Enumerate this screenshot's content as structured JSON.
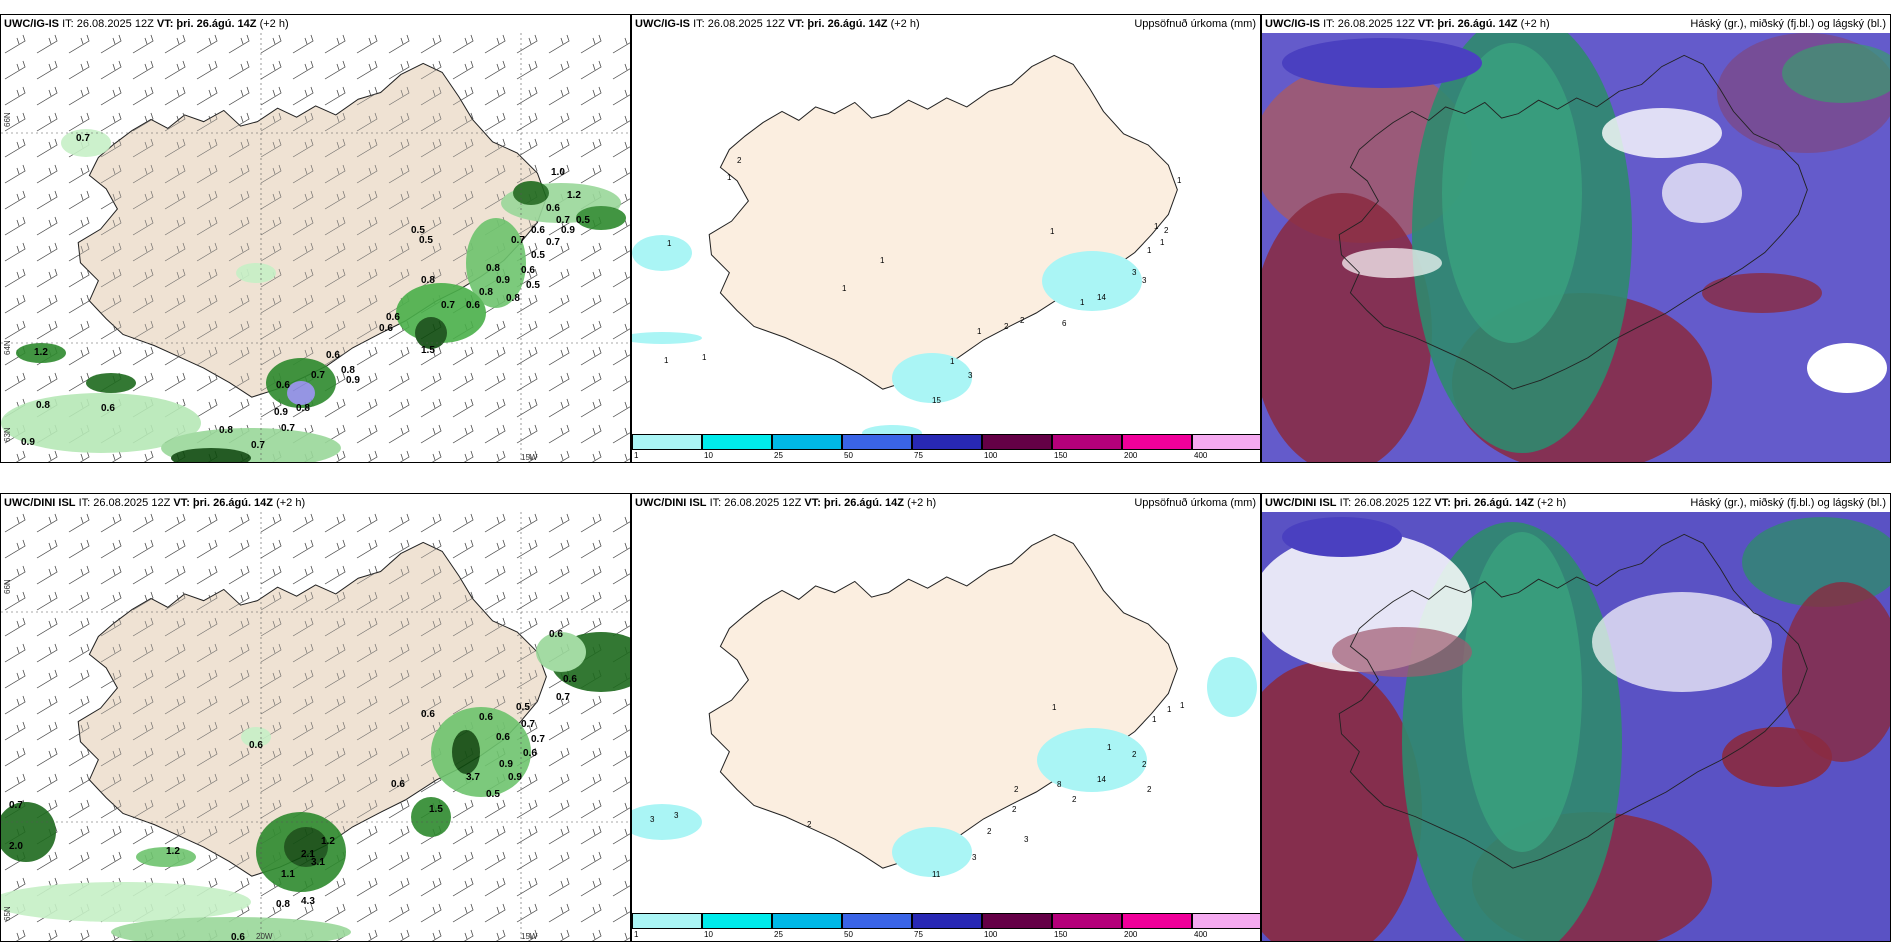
{
  "panels": [
    {
      "model": "UWC/IG-IS",
      "it": "IT: 26.08.2025 12Z",
      "vt_label": "VT:",
      "vt": "þri. 26.ágú. 14Z",
      "offset": "(+2 h)",
      "right": ""
    },
    {
      "model": "UWC/IG-IS",
      "it": "IT: 26.08.2025 12Z",
      "vt_label": "VT:",
      "vt": "þri. 26.ágú. 14Z",
      "offset": "(+2 h)",
      "right": "Uppsöfnuð úrkoma (mm)"
    },
    {
      "model": "UWC/IG-IS",
      "it": "IT: 26.08.2025 12Z",
      "vt_label": "VT:",
      "vt": "þri. 26.ágú. 14Z",
      "offset": "(+2 h)",
      "right": "Háský (gr.), miðský (fj.bl.) og lágský (bl.)"
    },
    {
      "model": "UWC/DINI ISL",
      "it": "IT: 26.08.2025 12Z",
      "vt_label": "VT:",
      "vt": "þri. 26.ágú. 14Z",
      "offset": "(+2 h)",
      "right": ""
    },
    {
      "model": "UWC/DINI ISL",
      "it": "IT: 26.08.2025 12Z",
      "vt_label": "VT:",
      "vt": "þri. 26.ágú. 14Z",
      "offset": "(+2 h)",
      "right": "Uppsöfnuð úrkoma (mm)"
    },
    {
      "model": "UWC/DINI ISL",
      "it": "IT: 26.08.2025 12Z",
      "vt_label": "VT:",
      "vt": "þri. 26.ágú. 14Z",
      "offset": "(+2 h)",
      "right": "Háský (gr.), miðský (fj.bl.) og lágský (bl.)"
    }
  ],
  "axes": {
    "lat66": "66N",
    "lat64": "64N",
    "lat65": "65N",
    "lat63": "63N",
    "lon20": "20W",
    "lon15": "15W"
  },
  "colorbar": {
    "ticks": [
      "1",
      "10",
      "25",
      "50",
      "75",
      "100",
      "150",
      "200",
      "400"
    ],
    "colors": [
      "#aaf5f5",
      "#00eaea",
      "#00b8e6",
      "#3a64e6",
      "#2828b4",
      "#640046",
      "#b4007a",
      "#f0009a",
      "#f5aaf0"
    ]
  },
  "precip_top": [
    "0.7",
    "0.5",
    "0.5",
    "0.8",
    "0.6",
    "0.6",
    "0.6",
    "0.7",
    "0.9",
    "0.8",
    "0.7",
    "0.5",
    "0.8",
    "0.7",
    "1.0",
    "1.2",
    "0.5",
    "0.7",
    "0.5",
    "0.8",
    "0.6",
    "0.9",
    "1.5",
    "0.8",
    "0.6",
    "0.6",
    "0.9",
    "0.9",
    "0.8",
    "0.7",
    "0.9",
    "0.7",
    "0.8",
    "0.6",
    "1.2",
    "0.6",
    "0.7",
    "0.8",
    "0.6"
  ],
  "precip_bottom": [
    "0.6",
    "0.6",
    "0.7",
    "0.6",
    "0.6",
    "0.7",
    "0.5",
    "0.6",
    "0.7",
    "0.6",
    "0.9",
    "0.9",
    "0.6",
    "0.5",
    "3.7",
    "0.6",
    "1.2",
    "2.0",
    "0.7",
    "1.2",
    "2.1",
    "3.1",
    "1.1",
    "4.3",
    "0.8",
    "0.6",
    "1.5"
  ],
  "accum_top": [
    "2",
    "1",
    "1",
    "1",
    "1",
    "1",
    "1",
    "1",
    "2",
    "1",
    "1",
    "1",
    "3",
    "14",
    "2",
    "2",
    "6",
    "1",
    "3",
    "1",
    "1",
    "3",
    "1",
    "15"
  ],
  "accum_bottom": [
    "1",
    "1",
    "1",
    "1",
    "2",
    "2",
    "2",
    "14",
    "8",
    "2",
    "2",
    "2",
    "2",
    "3",
    "3",
    "3",
    "2",
    "11",
    "3",
    "1"
  ]
}
